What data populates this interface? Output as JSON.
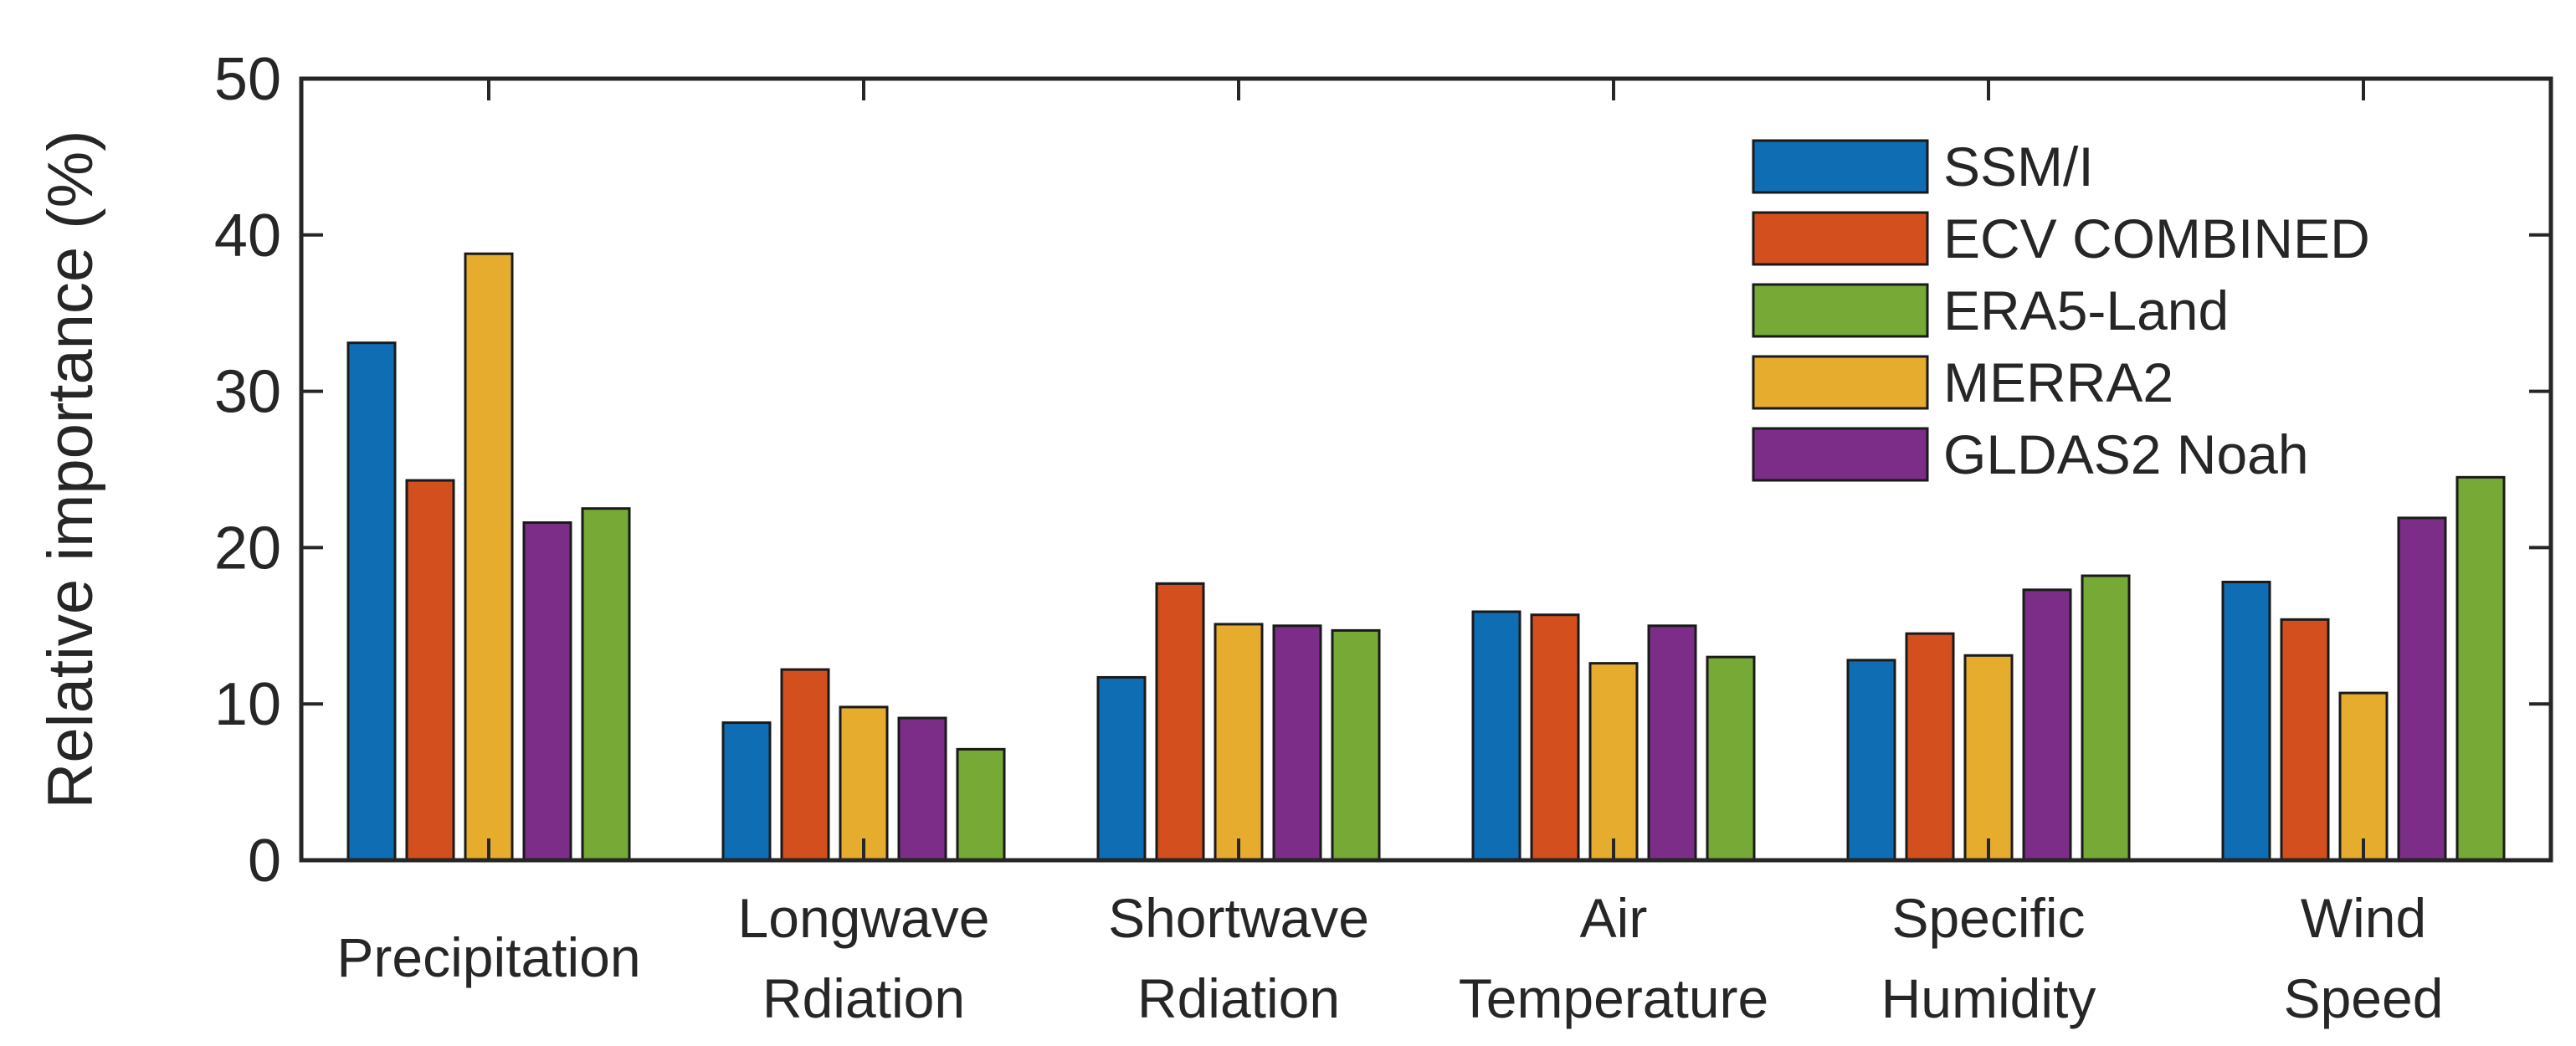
{
  "chart_data": {
    "type": "bar",
    "title": "",
    "xlabel": "",
    "ylabel": "Relative importance (%)",
    "ylim": [
      0,
      50
    ],
    "yticks": [
      "0",
      "10",
      "20",
      "30",
      "40",
      "50"
    ],
    "grid": false,
    "legend_position": "top-right",
    "categories": [
      [
        "Precipitation"
      ],
      [
        "Longwave",
        "Rdiation"
      ],
      [
        "Shortwave",
        "Rdiation"
      ],
      [
        "Air",
        "Temperature"
      ],
      [
        "Specific",
        "Humidity"
      ],
      [
        "Wind",
        "Speed"
      ]
    ],
    "bar_order": [
      "SSM/I",
      "ECV COMBINED",
      "MERRA2",
      "GLDAS2 Noah",
      "ERA5-Land"
    ],
    "series": [
      {
        "name": "SSM/I",
        "color": "#0f6db4",
        "values": [
          33.1,
          8.8,
          11.7,
          15.9,
          12.8,
          17.8
        ]
      },
      {
        "name": "ECV COMBINED",
        "color": "#d3501e",
        "values": [
          24.3,
          12.2,
          17.7,
          15.7,
          14.5,
          15.4
        ]
      },
      {
        "name": "ERA5-Land",
        "color": "#76a935",
        "values": [
          22.5,
          7.1,
          14.7,
          13.0,
          18.2,
          24.5
        ]
      },
      {
        "name": "MERRA2",
        "color": "#e6ac2d",
        "values": [
          38.8,
          9.8,
          15.1,
          12.6,
          13.1,
          10.7
        ]
      },
      {
        "name": "GLDAS2 Noah",
        "color": "#7b2d88",
        "values": [
          21.6,
          9.1,
          15.0,
          15.0,
          17.3,
          21.9
        ]
      }
    ]
  }
}
